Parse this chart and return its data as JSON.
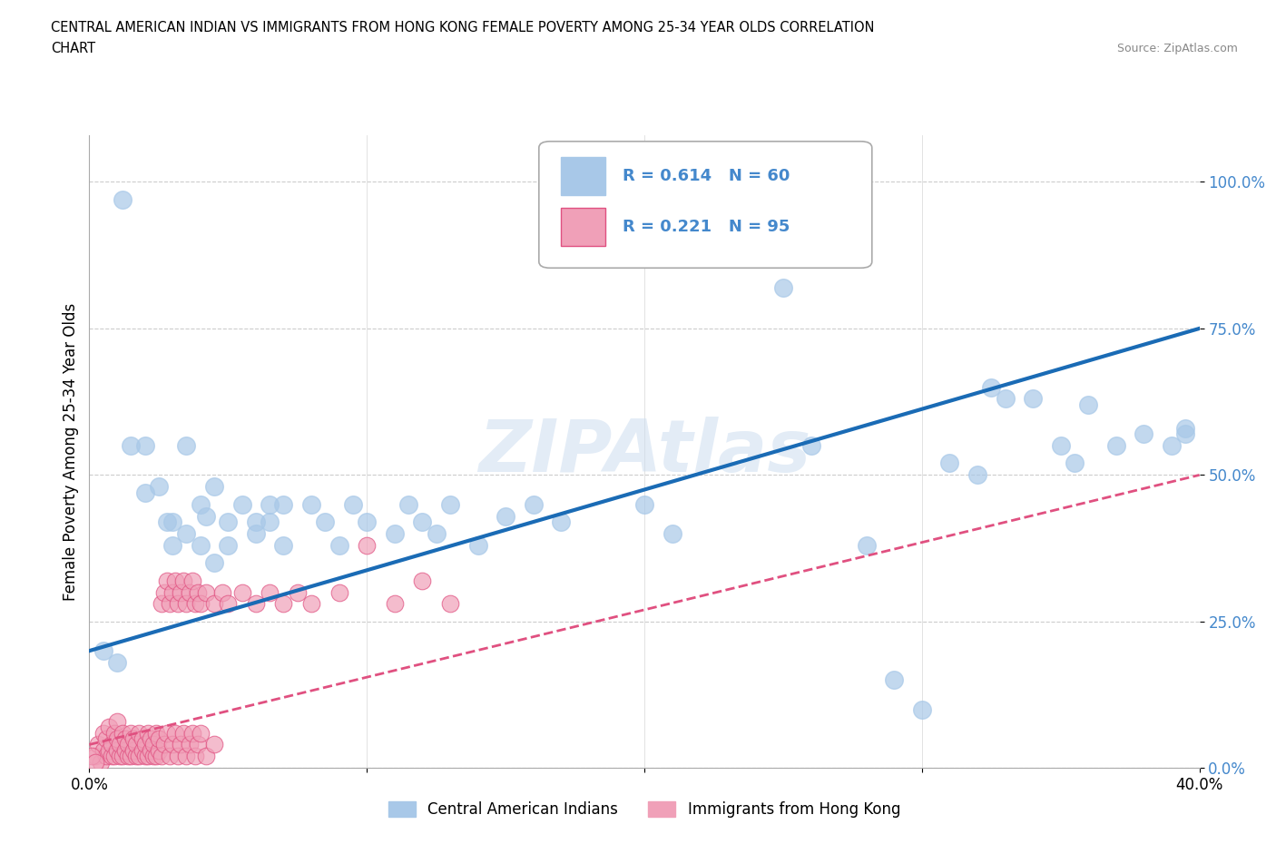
{
  "title_line1": "CENTRAL AMERICAN INDIAN VS IMMIGRANTS FROM HONG KONG FEMALE POVERTY AMONG 25-34 YEAR OLDS CORRELATION",
  "title_line2": "CHART",
  "source": "Source: ZipAtlas.com",
  "ylabel": "Female Poverty Among 25-34 Year Olds",
  "xlim": [
    0,
    0.4
  ],
  "ylim": [
    0,
    1.08
  ],
  "ytick_positions": [
    0.0,
    0.25,
    0.5,
    0.75,
    1.0
  ],
  "yticklabels": [
    "0.0%",
    "25.0%",
    "50.0%",
    "75.0%",
    "100.0%"
  ],
  "xtick_positions": [
    0.0,
    0.1,
    0.2,
    0.3,
    0.4
  ],
  "xticklabels": [
    "0.0%",
    "",
    "",
    "",
    "40.0%"
  ],
  "blue_scatter_color": "#a8c8e8",
  "blue_line_color": "#1a6bb5",
  "pink_scatter_color": "#f0a0b8",
  "pink_line_color": "#e05080",
  "tick_label_color": "#4488cc",
  "R_blue": 0.614,
  "N_blue": 60,
  "R_pink": 0.221,
  "N_pink": 95,
  "watermark": "ZIPAtlas",
  "legend_labels": [
    "Central American Indians",
    "Immigrants from Hong Kong"
  ],
  "blue_scatter": [
    [
      0.005,
      0.2
    ],
    [
      0.01,
      0.18
    ],
    [
      0.012,
      0.97
    ],
    [
      0.015,
      0.55
    ],
    [
      0.02,
      0.55
    ],
    [
      0.02,
      0.47
    ],
    [
      0.025,
      0.48
    ],
    [
      0.028,
      0.42
    ],
    [
      0.03,
      0.38
    ],
    [
      0.03,
      0.42
    ],
    [
      0.035,
      0.4
    ],
    [
      0.035,
      0.55
    ],
    [
      0.04,
      0.38
    ],
    [
      0.04,
      0.45
    ],
    [
      0.042,
      0.43
    ],
    [
      0.045,
      0.48
    ],
    [
      0.045,
      0.35
    ],
    [
      0.05,
      0.42
    ],
    [
      0.05,
      0.38
    ],
    [
      0.055,
      0.45
    ],
    [
      0.06,
      0.42
    ],
    [
      0.06,
      0.4
    ],
    [
      0.065,
      0.45
    ],
    [
      0.065,
      0.42
    ],
    [
      0.07,
      0.45
    ],
    [
      0.07,
      0.38
    ],
    [
      0.08,
      0.45
    ],
    [
      0.085,
      0.42
    ],
    [
      0.09,
      0.38
    ],
    [
      0.095,
      0.45
    ],
    [
      0.1,
      0.42
    ],
    [
      0.11,
      0.4
    ],
    [
      0.115,
      0.45
    ],
    [
      0.12,
      0.42
    ],
    [
      0.125,
      0.4
    ],
    [
      0.13,
      0.45
    ],
    [
      0.14,
      0.38
    ],
    [
      0.15,
      0.43
    ],
    [
      0.16,
      0.45
    ],
    [
      0.17,
      0.42
    ],
    [
      0.2,
      0.45
    ],
    [
      0.21,
      0.4
    ],
    [
      0.25,
      0.82
    ],
    [
      0.26,
      0.55
    ],
    [
      0.28,
      0.38
    ],
    [
      0.29,
      0.15
    ],
    [
      0.3,
      0.1
    ],
    [
      0.31,
      0.52
    ],
    [
      0.32,
      0.5
    ],
    [
      0.325,
      0.65
    ],
    [
      0.33,
      0.63
    ],
    [
      0.34,
      0.63
    ],
    [
      0.35,
      0.55
    ],
    [
      0.355,
      0.52
    ],
    [
      0.36,
      0.62
    ],
    [
      0.37,
      0.55
    ],
    [
      0.38,
      0.57
    ],
    [
      0.39,
      0.55
    ],
    [
      0.395,
      0.58
    ],
    [
      0.395,
      0.57
    ]
  ],
  "pink_scatter": [
    [
      0.002,
      0.02
    ],
    [
      0.003,
      0.04
    ],
    [
      0.004,
      0.01
    ],
    [
      0.005,
      0.03
    ],
    [
      0.005,
      0.06
    ],
    [
      0.006,
      0.02
    ],
    [
      0.006,
      0.05
    ],
    [
      0.007,
      0.03
    ],
    [
      0.007,
      0.07
    ],
    [
      0.008,
      0.02
    ],
    [
      0.008,
      0.04
    ],
    [
      0.009,
      0.06
    ],
    [
      0.009,
      0.02
    ],
    [
      0.01,
      0.03
    ],
    [
      0.01,
      0.05
    ],
    [
      0.01,
      0.08
    ],
    [
      0.011,
      0.02
    ],
    [
      0.011,
      0.04
    ],
    [
      0.012,
      0.06
    ],
    [
      0.012,
      0.02
    ],
    [
      0.013,
      0.03
    ],
    [
      0.013,
      0.05
    ],
    [
      0.014,
      0.02
    ],
    [
      0.014,
      0.04
    ],
    [
      0.015,
      0.06
    ],
    [
      0.015,
      0.02
    ],
    [
      0.016,
      0.03
    ],
    [
      0.016,
      0.05
    ],
    [
      0.017,
      0.02
    ],
    [
      0.017,
      0.04
    ],
    [
      0.018,
      0.06
    ],
    [
      0.018,
      0.02
    ],
    [
      0.019,
      0.03
    ],
    [
      0.019,
      0.05
    ],
    [
      0.02,
      0.02
    ],
    [
      0.02,
      0.04
    ],
    [
      0.021,
      0.06
    ],
    [
      0.021,
      0.02
    ],
    [
      0.022,
      0.03
    ],
    [
      0.022,
      0.05
    ],
    [
      0.023,
      0.02
    ],
    [
      0.023,
      0.04
    ],
    [
      0.024,
      0.06
    ],
    [
      0.024,
      0.02
    ],
    [
      0.025,
      0.03
    ],
    [
      0.025,
      0.05
    ],
    [
      0.026,
      0.28
    ],
    [
      0.026,
      0.02
    ],
    [
      0.027,
      0.3
    ],
    [
      0.027,
      0.04
    ],
    [
      0.028,
      0.32
    ],
    [
      0.028,
      0.06
    ],
    [
      0.029,
      0.28
    ],
    [
      0.029,
      0.02
    ],
    [
      0.03,
      0.3
    ],
    [
      0.03,
      0.04
    ],
    [
      0.031,
      0.32
    ],
    [
      0.031,
      0.06
    ],
    [
      0.032,
      0.28
    ],
    [
      0.032,
      0.02
    ],
    [
      0.033,
      0.3
    ],
    [
      0.033,
      0.04
    ],
    [
      0.034,
      0.32
    ],
    [
      0.034,
      0.06
    ],
    [
      0.035,
      0.28
    ],
    [
      0.035,
      0.02
    ],
    [
      0.036,
      0.3
    ],
    [
      0.036,
      0.04
    ],
    [
      0.037,
      0.32
    ],
    [
      0.037,
      0.06
    ],
    [
      0.038,
      0.28
    ],
    [
      0.038,
      0.02
    ],
    [
      0.039,
      0.3
    ],
    [
      0.039,
      0.04
    ],
    [
      0.04,
      0.28
    ],
    [
      0.04,
      0.06
    ],
    [
      0.042,
      0.3
    ],
    [
      0.042,
      0.02
    ],
    [
      0.045,
      0.28
    ],
    [
      0.045,
      0.04
    ],
    [
      0.048,
      0.3
    ],
    [
      0.05,
      0.28
    ],
    [
      0.055,
      0.3
    ],
    [
      0.06,
      0.28
    ],
    [
      0.065,
      0.3
    ],
    [
      0.07,
      0.28
    ],
    [
      0.075,
      0.3
    ],
    [
      0.08,
      0.28
    ],
    [
      0.09,
      0.3
    ],
    [
      0.1,
      0.38
    ],
    [
      0.11,
      0.28
    ],
    [
      0.12,
      0.32
    ],
    [
      0.13,
      0.28
    ],
    [
      0.001,
      0.02
    ],
    [
      0.002,
      0.01
    ]
  ]
}
